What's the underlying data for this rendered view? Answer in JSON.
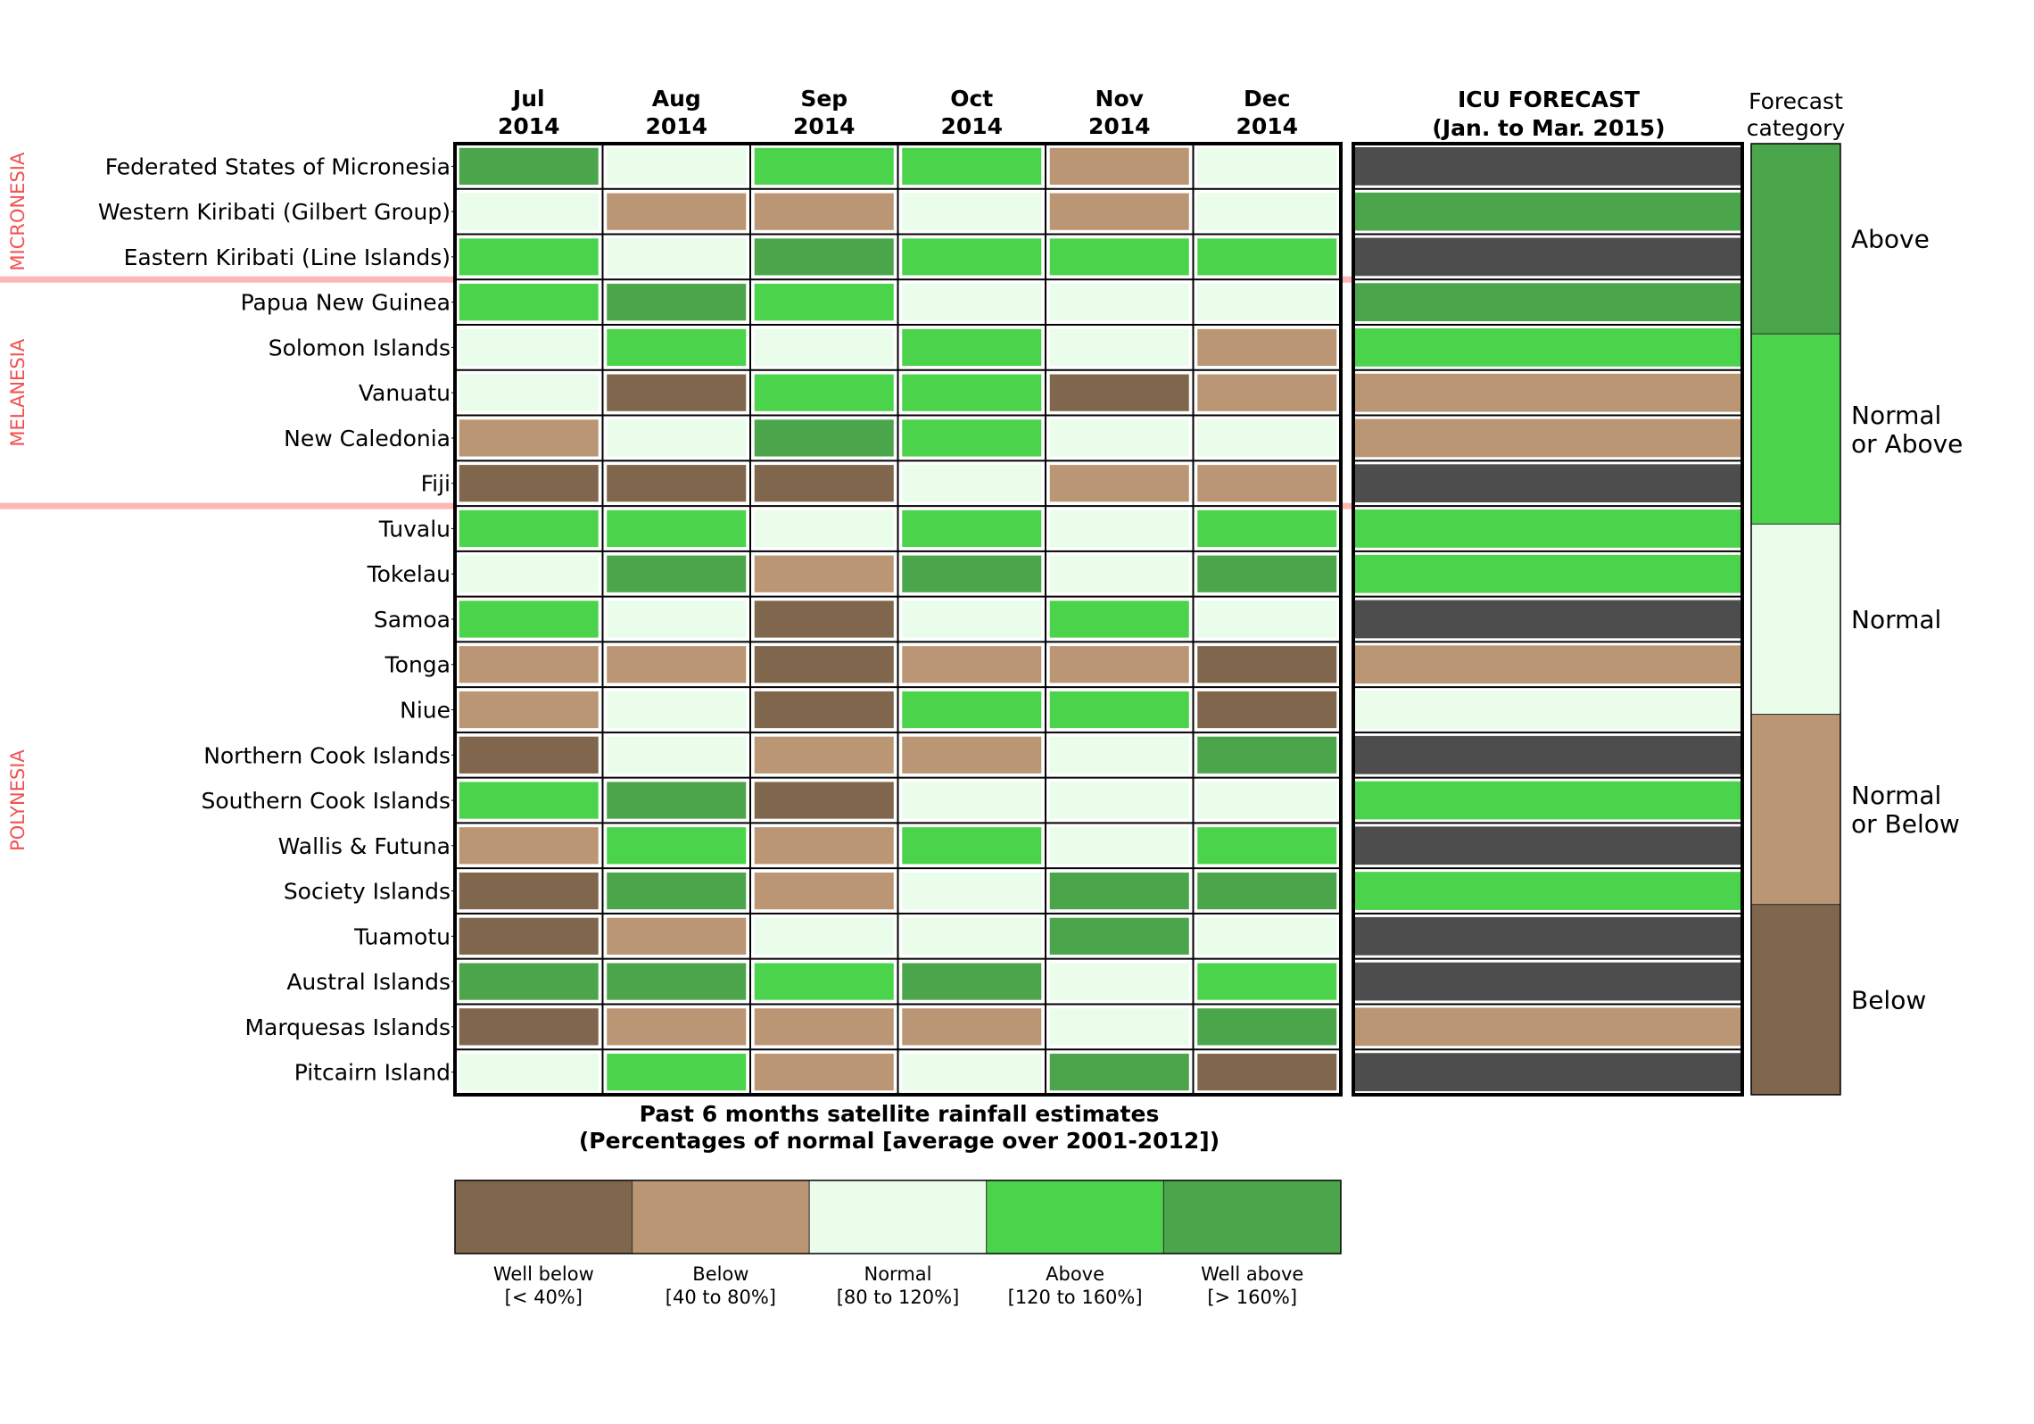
{
  "chart_data": {
    "type": "heatmap",
    "title": "Past 6 months satellite rainfall estimates",
    "subtitle": "(Percentages of normal [average over 2001-2012])",
    "columns": [
      {
        "month": "Jul",
        "year": "2014"
      },
      {
        "month": "Aug",
        "year": "2014"
      },
      {
        "month": "Sep",
        "year": "2014"
      },
      {
        "month": "Oct",
        "year": "2014"
      },
      {
        "month": "Nov",
        "year": "2014"
      },
      {
        "month": "Dec",
        "year": "2014"
      }
    ],
    "forecast_title": "ICU FORECAST",
    "forecast_subtitle": "(Jan. to Mar. 2015)",
    "regions": [
      {
        "name": "MICRONESIA",
        "first_row": 0,
        "last_row": 2
      },
      {
        "name": "MELANESIA",
        "first_row": 3,
        "last_row": 7
      },
      {
        "name": "POLYNESIA",
        "first_row": 8,
        "last_row": 20
      }
    ],
    "rows": [
      {
        "name": "Federated States of Micronesia",
        "values": [
          5,
          3,
          4,
          4,
          2,
          3
        ],
        "forecast": "none"
      },
      {
        "name": "Western Kiribati (Gilbert Group)",
        "values": [
          3,
          2,
          2,
          3,
          2,
          3
        ],
        "forecast": "above"
      },
      {
        "name": "Eastern Kiribati (Line Islands)",
        "values": [
          4,
          3,
          5,
          4,
          4,
          4
        ],
        "forecast": "none"
      },
      {
        "name": "Papua New Guinea",
        "values": [
          4,
          5,
          4,
          3,
          3,
          3
        ],
        "forecast": "above"
      },
      {
        "name": "Solomon Islands",
        "values": [
          3,
          4,
          3,
          4,
          3,
          2
        ],
        "forecast": "normal_or_above"
      },
      {
        "name": "Vanuatu",
        "values": [
          3,
          1,
          4,
          4,
          1,
          2
        ],
        "forecast": "normal_or_below"
      },
      {
        "name": "New Caledonia",
        "values": [
          2,
          3,
          5,
          4,
          3,
          3
        ],
        "forecast": "normal_or_below"
      },
      {
        "name": "Fiji",
        "values": [
          1,
          1,
          1,
          3,
          2,
          2
        ],
        "forecast": "none"
      },
      {
        "name": "Tuvalu",
        "values": [
          4,
          4,
          3,
          4,
          3,
          4
        ],
        "forecast": "normal_or_above"
      },
      {
        "name": "Tokelau",
        "values": [
          3,
          5,
          2,
          5,
          3,
          5
        ],
        "forecast": "normal_or_above"
      },
      {
        "name": "Samoa",
        "values": [
          4,
          3,
          1,
          3,
          4,
          3
        ],
        "forecast": "none"
      },
      {
        "name": "Tonga",
        "values": [
          2,
          2,
          1,
          2,
          2,
          1
        ],
        "forecast": "normal_or_below"
      },
      {
        "name": "Niue",
        "values": [
          2,
          3,
          1,
          4,
          4,
          1
        ],
        "forecast": "normal"
      },
      {
        "name": "Northern Cook Islands",
        "values": [
          1,
          3,
          2,
          2,
          3,
          5
        ],
        "forecast": "none"
      },
      {
        "name": "Southern Cook Islands",
        "values": [
          4,
          5,
          1,
          3,
          3,
          3
        ],
        "forecast": "normal_or_above"
      },
      {
        "name": "Wallis & Futuna",
        "values": [
          2,
          4,
          2,
          4,
          3,
          4
        ],
        "forecast": "none"
      },
      {
        "name": "Society Islands",
        "values": [
          1,
          5,
          2,
          3,
          5,
          5
        ],
        "forecast": "normal_or_above"
      },
      {
        "name": "Tuamotu",
        "values": [
          1,
          2,
          3,
          3,
          5,
          3
        ],
        "forecast": "none"
      },
      {
        "name": "Austral Islands",
        "values": [
          5,
          5,
          4,
          5,
          3,
          4
        ],
        "forecast": "none"
      },
      {
        "name": "Marquesas Islands",
        "values": [
          1,
          2,
          2,
          2,
          3,
          5
        ],
        "forecast": "normal_or_below"
      },
      {
        "name": "Pitcairn Island",
        "values": [
          3,
          4,
          2,
          3,
          5,
          1
        ],
        "forecast": "none"
      }
    ],
    "rainfall_legend": [
      {
        "value": 1,
        "label": "Well below",
        "range": "[< 40%]",
        "color": "#7f664d"
      },
      {
        "value": 2,
        "label": "Below",
        "range": "[40 to 80%]",
        "color": "#bb9675"
      },
      {
        "value": 3,
        "label": "Normal",
        "range": "[80 to 120%]",
        "color": "#eafdea"
      },
      {
        "value": 4,
        "label": "Above",
        "range": "[120 to 160%]",
        "color": "#4bd44b"
      },
      {
        "value": 5,
        "label": "Well above",
        "range": "[> 160%]",
        "color": "#4ba64b"
      }
    ],
    "forecast_category_title": [
      "Forecast",
      "category"
    ],
    "forecast_legend": [
      {
        "key": "above",
        "label": [
          "Above"
        ],
        "color": "#4ba64b"
      },
      {
        "key": "normal_or_above",
        "label": [
          "Normal",
          " or Above"
        ],
        "color": "#4bd44b"
      },
      {
        "key": "normal",
        "label": [
          "Normal"
        ],
        "color": "#eafdea"
      },
      {
        "key": "normal_or_below",
        "label": [
          "Normal",
          " or Below"
        ],
        "color": "#bb9675"
      },
      {
        "key": "below",
        "label": [
          "Below"
        ],
        "color": "#7f664d"
      }
    ],
    "forecast_none_color": "#4d4d4d",
    "region_color": "#f25252",
    "region_line_color": "#ffb6b6"
  }
}
